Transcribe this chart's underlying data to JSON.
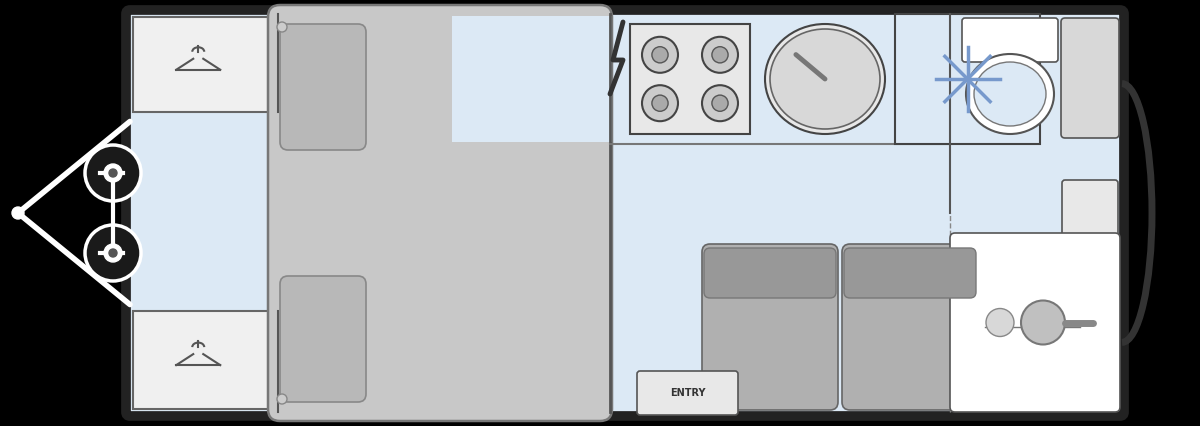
{
  "fig_width": 12.0,
  "fig_height": 4.26,
  "dpi": 100,
  "bg_color": "#000000",
  "floor_color": "#dce9f5",
  "wall_color": "#333333",
  "wardrobe_color": "#f0f0f0",
  "bed_color": "#c8c8c8",
  "pillow_color": "#b8b8b8",
  "kitchen_color": "#e8e8e8",
  "stove_burner_color": "#c8c8c8",
  "sink_color": "#d8d8d8",
  "fridge_color": "#dce9f5",
  "snowflake_color": "#7799cc",
  "toilet_color": "#ffffff",
  "seat_color": "#b0b0b0",
  "seat_back_color": "#989898",
  "bath_color": "#ffffff",
  "entry_color": "#e8e8e8"
}
